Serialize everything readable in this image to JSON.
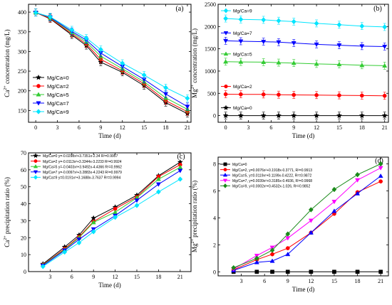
{
  "chart_data": [
    {
      "type": "line",
      "panel": "(a)",
      "xlabel": "Time (d)",
      "ylabel": "Ca2+ concentration (mg/L)",
      "ylabel_parts": {
        "pre": "Ca",
        "sup": "2+",
        "post": " concentration (mg/L)"
      },
      "xlim": [
        -1,
        21.5
      ],
      "ylim": [
        120,
        420
      ],
      "xticks": [
        "0",
        "3",
        "6",
        "9",
        "12",
        "15",
        "18",
        "21"
      ],
      "yticks": [
        "150",
        "200",
        "250",
        "300",
        "350",
        "400"
      ],
      "error_bars": true,
      "legend_position": "center-left",
      "x": [
        0,
        2,
        5,
        7,
        9,
        12,
        15,
        18,
        21
      ],
      "series": [
        {
          "name": "Mg/Ca=0",
          "color": "#000000",
          "marker": "star",
          "values": [
            399,
            383,
            342,
            315,
            273,
            247,
            213,
            170,
            142
          ]
        },
        {
          "name": "Mg/Ca=2",
          "color": "#ff0000",
          "marker": "circle",
          "values": [
            399,
            384,
            345,
            319,
            280,
            251,
            218,
            175,
            147
          ]
        },
        {
          "name": "Mg/Ca=5",
          "color": "#33cc33",
          "marker": "triangle-up",
          "values": [
            399,
            386,
            348,
            324,
            288,
            256,
            223,
            182,
            153
          ]
        },
        {
          "name": "Mg/Ca=7",
          "color": "#0000ff",
          "marker": "triangle-down",
          "values": [
            399,
            387,
            351,
            329,
            296,
            262,
            229,
            192,
            160
          ]
        },
        {
          "name": "Mg/Ca=9",
          "color": "#00e5ff",
          "marker": "diamond",
          "values": [
            399,
            388,
            355,
            334,
            305,
            270,
            240,
            208,
            181
          ]
        }
      ]
    },
    {
      "type": "line",
      "panel": "(b)",
      "xlabel": "Time (d)",
      "ylabel": "Mg2+ concentration (mg/L)",
      "ylabel_parts": {
        "pre": "Mg",
        "sup": "2+",
        "post": " concentration (mg/L)"
      },
      "xlim": [
        -1,
        21.5
      ],
      "ylim": [
        -150,
        2500
      ],
      "xticks": [
        "0",
        "3",
        "6",
        "9",
        "12",
        "15",
        "18",
        "21"
      ],
      "yticks": [
        "0",
        "500",
        "1000",
        "1500",
        "2000",
        "2500"
      ],
      "error_bars": true,
      "legend_position": "inline-above-each-series",
      "x": [
        0,
        2,
        5,
        7,
        9,
        12,
        15,
        18,
        21
      ],
      "series": [
        {
          "name": "Mg/Ca=9",
          "color": "#00e5ff",
          "marker": "diamond",
          "values": [
            2180,
            2160,
            2150,
            2130,
            2110,
            2070,
            2040,
            2010,
            1990
          ]
        },
        {
          "name": "Mg/Ca=7",
          "color": "#0000ff",
          "marker": "triangle-down",
          "values": [
            1680,
            1670,
            1660,
            1650,
            1630,
            1600,
            1580,
            1560,
            1550
          ]
        },
        {
          "name": "Mg/Ca=5",
          "color": "#33cc33",
          "marker": "triangle-up",
          "values": [
            1210,
            1205,
            1200,
            1190,
            1180,
            1160,
            1150,
            1130,
            1120
          ]
        },
        {
          "name": "Mg/Ca=2",
          "color": "#ff0000",
          "marker": "circle",
          "values": [
            480,
            478,
            475,
            470,
            465,
            460,
            455,
            450,
            445
          ]
        },
        {
          "name": "Mg/Ca=0",
          "color": "#000000",
          "marker": "star",
          "values": [
            0,
            0,
            0,
            0,
            0,
            0,
            0,
            0,
            0
          ]
        }
      ]
    },
    {
      "type": "line",
      "panel": "(c)",
      "xlabel": "Time (d)",
      "ylabel": "Ca2+ precipitation ratio (%)",
      "ylabel_parts": {
        "pre": "Ca",
        "sup": "2+",
        "post": " precipitation ratio (%)"
      },
      "xlim": [
        0,
        22.5
      ],
      "ylim": [
        0,
        70
      ],
      "xticks": [
        "3",
        "6",
        "9",
        "12",
        "15",
        "18",
        "21"
      ],
      "yticks": [
        "0",
        "10",
        "20",
        "30",
        "40",
        "50",
        "60",
        "70"
      ],
      "legend_position": "top-left",
      "x": [
        2,
        5,
        7,
        9,
        12,
        15,
        18,
        21
      ],
      "series": [
        {
          "name": "Mg/Ca=0",
          "equation": "y=-0.0298x²+3.7351x-2.34    R²=0.9957",
          "color": "#000000",
          "marker": "star",
          "values": [
            4.5,
            14.5,
            21.5,
            31.5,
            38,
            45,
            56.5,
            64.5
          ]
        },
        {
          "name": "Mg/Ca=2",
          "equation": "y=-0.0113x²+3.3344x-3.2233  R²=0.9924",
          "color": "#ff0000",
          "marker": "circle",
          "values": [
            4,
            13.5,
            20.5,
            29.5,
            37,
            44,
            56,
            63
          ]
        },
        {
          "name": "Mg/Ca=5",
          "equation": "y=-0.0403x²+3.9492x-4.4366  R²=0.9962",
          "color": "#33cc33",
          "marker": "triangle-up",
          "values": [
            3.8,
            13,
            20,
            29,
            35,
            43.5,
            54.5,
            61.5
          ]
        },
        {
          "name": "Mg/Ca=7",
          "equation": "y=-0.0097x²+3.2883x-4.2243  R²=0.9979",
          "color": "#0000ff",
          "marker": "triangle-down",
          "values": [
            3.5,
            12.5,
            19,
            25,
            33,
            42,
            51.5,
            59.5
          ]
        },
        {
          "name": "Mg/Ca=9",
          "equation": "y=0.0191x²+3.1688x-3.7637   R²=0.9994",
          "color": "#00e5ff",
          "marker": "diamond",
          "values": [
            3,
            11.5,
            17,
            23.5,
            32,
            39,
            47,
            54.5
          ]
        }
      ]
    },
    {
      "type": "line",
      "panel": "(d)",
      "xlabel": "Time (d)",
      "ylabel": "Mg2+ precipitation ratio (%)",
      "ylabel_parts": {
        "pre": "Mg",
        "sup": "2+",
        "post": " precipitation ratio (%)"
      },
      "xlim": [
        0,
        22
      ],
      "ylim": [
        -0.3,
        8.5
      ],
      "xticks": [
        "3",
        "6",
        "9",
        "12",
        "15",
        "18",
        "21"
      ],
      "yticks": [
        "0",
        "2",
        "4",
        "6",
        "8"
      ],
      "legend_position": "top-left",
      "x": [
        2,
        5,
        7,
        9,
        12,
        15,
        18,
        21
      ],
      "series": [
        {
          "name": "Mg/Ca=0",
          "equation": "",
          "color": "#000000",
          "marker": "square",
          "values": [
            0,
            0,
            0,
            0,
            0,
            0,
            0,
            0
          ]
        },
        {
          "name": "Mg/Ca=2",
          "equation": "y=0.0076x²+0.1918x-0.3771, R²=0.9913",
          "color": "#ff0000",
          "marker": "circle",
          "values": [
            0.15,
            0.9,
            1.3,
            1.75,
            2.9,
            4.3,
            5.9,
            6.7
          ]
        },
        {
          "name": "Mg/Ca=5",
          "equation": "y=0.0119x²+0.1199x-0.4222, R²=0.9872",
          "color": "#0000ff",
          "marker": "triangle-up",
          "values": [
            0.1,
            0.7,
            0.8,
            1.3,
            2.9,
            4.5,
            5.8,
            7.1
          ]
        },
        {
          "name": "Mg/Ca=7",
          "equation": "y=0.0039x²+0.3185x-0.4936, R²=0.9968",
          "color": "#ff00ff",
          "marker": "triangle-down",
          "values": [
            0.2,
            1.2,
            1.8,
            2.5,
            3.8,
            5.2,
            6.8,
            7.7
          ]
        },
        {
          "name": "Mg/Ca=9",
          "equation": "y=0.0002x²+0.4532x-1.026,  R²=0.9852",
          "color": "#1a8a1a",
          "marker": "diamond",
          "values": [
            0.3,
            1.0,
            1.6,
            2.8,
            4.6,
            6.1,
            7.2,
            8.0
          ]
        }
      ]
    }
  ]
}
